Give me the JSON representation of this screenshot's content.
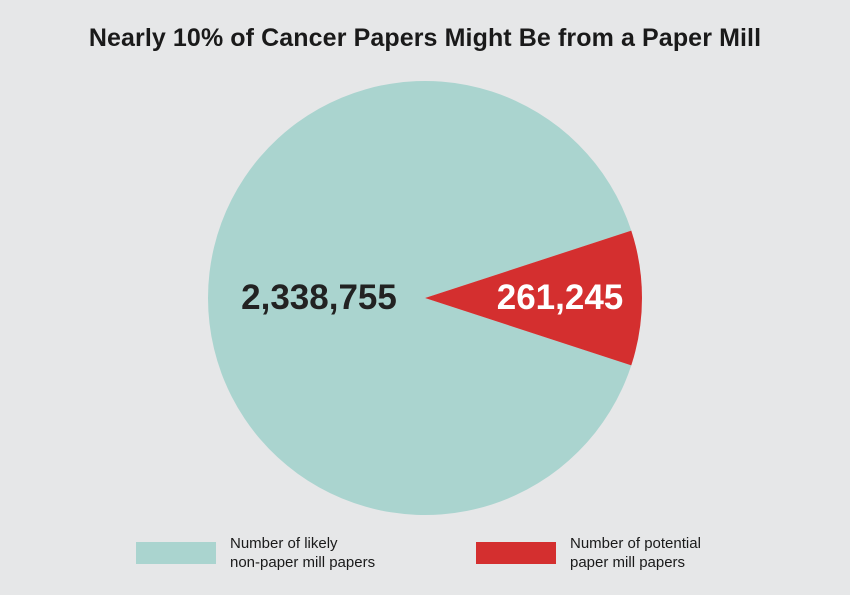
{
  "chart_data": {
    "type": "pie",
    "title": "Nearly 10% of Cancer Papers Might Be from a Paper Mill",
    "slices": [
      {
        "label": "Number of likely\nnon-paper mill papers",
        "value": 2338755,
        "value_label": "2,338,755",
        "color": "#aad4cf",
        "text_color": "#222222"
      },
      {
        "label": "Number of potential\npaper mill papers",
        "value": 261245,
        "value_label": "261,245",
        "color": "#d42f2f",
        "text_color": "#ffffff"
      }
    ],
    "legend_position": "bottom"
  }
}
